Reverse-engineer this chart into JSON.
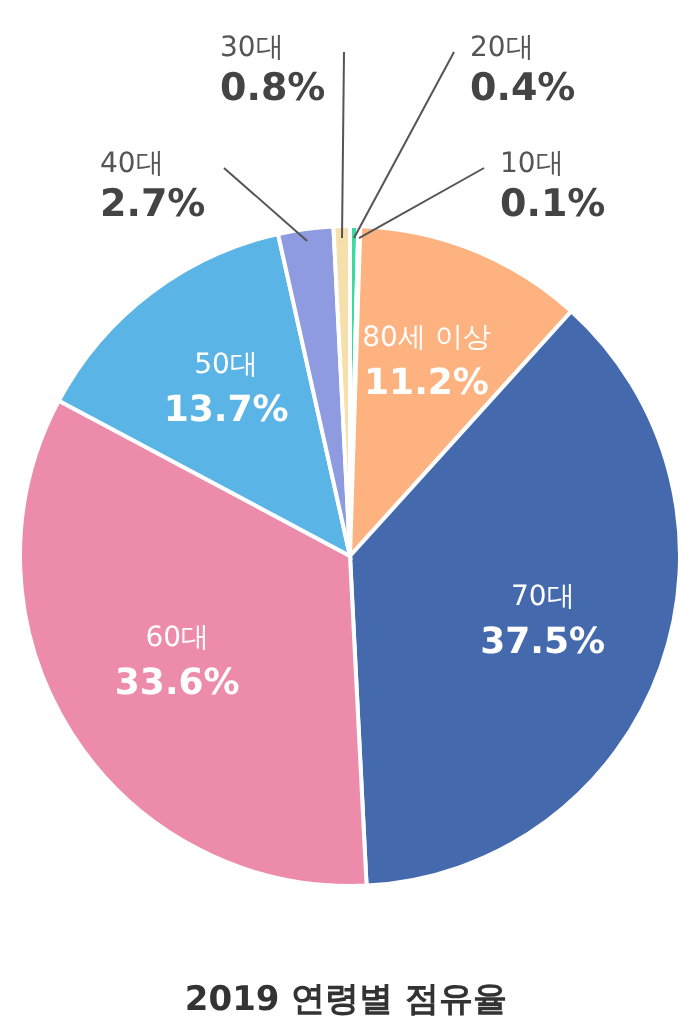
{
  "chart_data": {
    "type": "pie",
    "title": "2019 연령별 점유율",
    "categories": [
      "20대",
      "10대",
      "80세 이상",
      "70대",
      "60대",
      "50대",
      "40대",
      "30대"
    ],
    "values": [
      0.4,
      0.1,
      11.2,
      37.5,
      33.6,
      13.7,
      2.7,
      0.8
    ],
    "colors": [
      "#3dd9a0",
      "#2bc4b0",
      "#fdb27f",
      "#4569ad",
      "#ed8bab",
      "#5ab4e5",
      "#8f9be0",
      "#f5dfaa"
    ],
    "value_labels": [
      "0.4%",
      "0.1%",
      "11.2%",
      "37.5%",
      "33.6%",
      "13.7%",
      "2.7%",
      "0.8%"
    ]
  }
}
